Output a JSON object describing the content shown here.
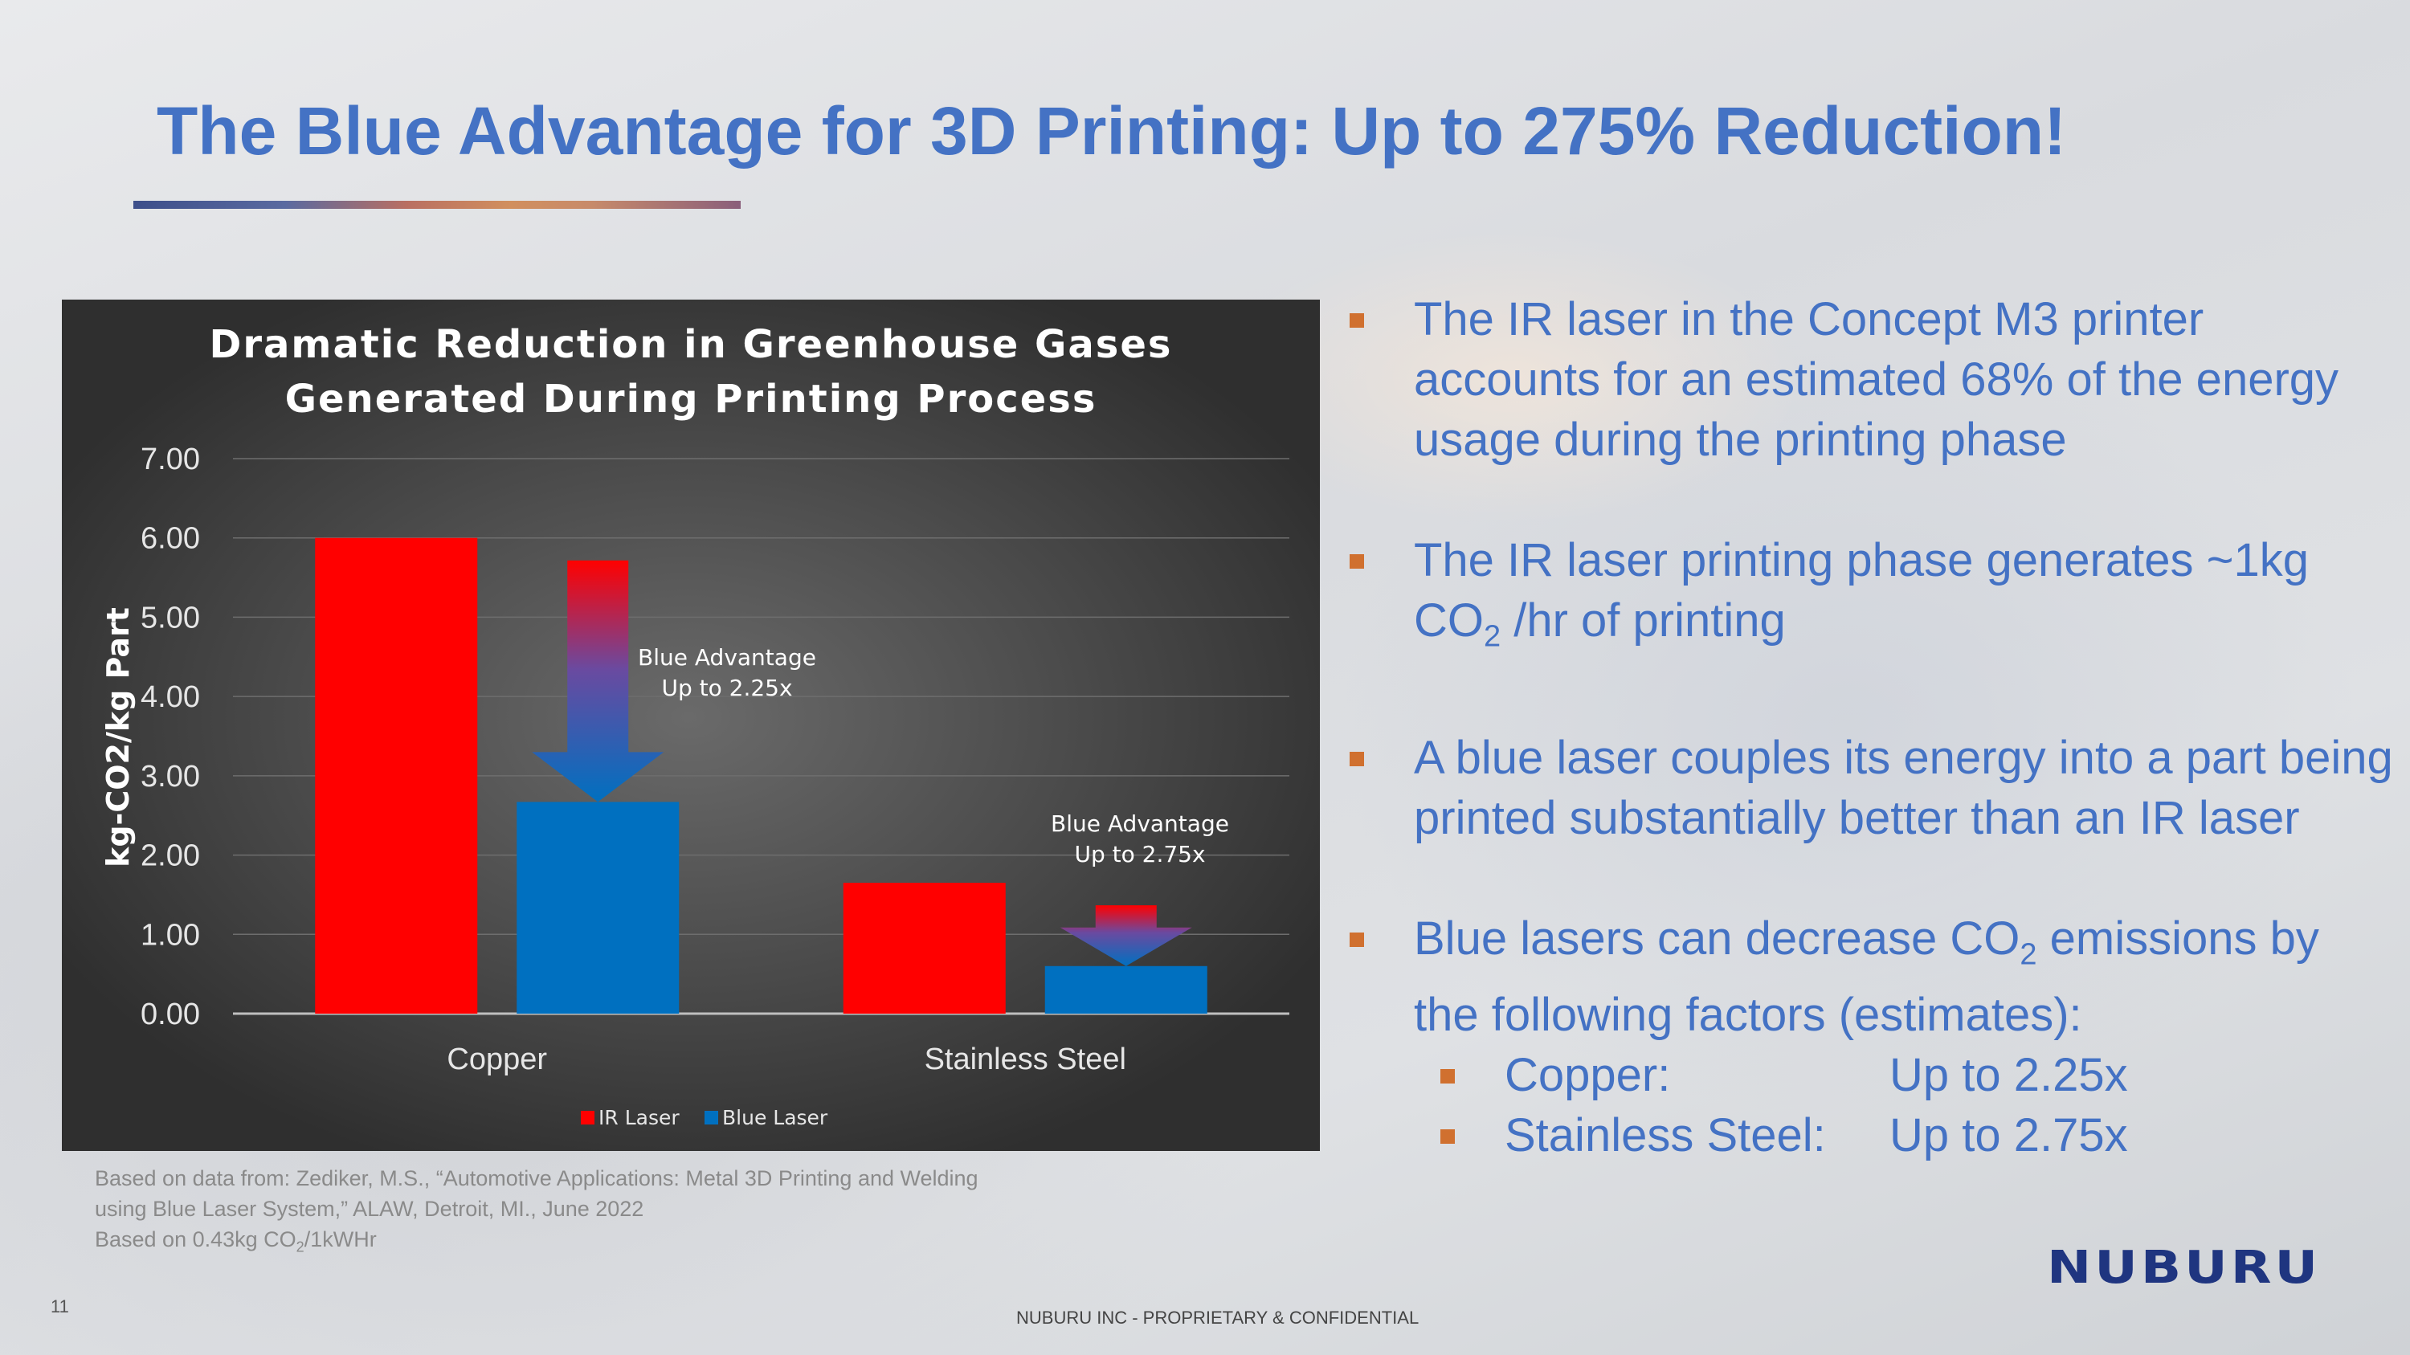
{
  "slide": {
    "title": "The Blue Advantage for 3D Printing: Up to 275% Reduction!",
    "page_number": "11",
    "footer": "NUBURU INC - PROPRIETARY & CONFIDENTIAL",
    "logo": "NUBURU",
    "colors": {
      "title": "#4472c4",
      "bullet": "#d0702f",
      "ir": "#ff0000",
      "blue": "#0070c0"
    }
  },
  "bullets": [
    {
      "text": "The IR laser in the Concept M3 printer accounts for an estimated 68% of the energy usage during the printing phase"
    },
    {
      "pre": "The IR laser printing phase generates ~1kg CO",
      "sub": "2",
      "post": " /hr of printing"
    },
    {
      "text": "A blue laser couples its energy into a part being printed substantially better than an IR laser"
    },
    {
      "pre": "Blue lasers can decrease CO",
      "sub": "2",
      "post": " emissions by the following factors (estimates):"
    }
  ],
  "factors": [
    {
      "label": "Copper:",
      "value": "Up to 2.25x"
    },
    {
      "label": "Stainless Steel:",
      "value": "Up to 2.75x"
    }
  ],
  "source": {
    "line1": "Based on data from: Zediker, M.S., “Automotive Applications: Metal 3D Printing and Welding",
    "line2": "using Blue Laser System,”  ALAW, Detroit, MI., June 2022",
    "line3_pre": "Based on 0.43kg CO",
    "line3_sub": "2",
    "line3_post": "/1kWHr"
  },
  "chart_data": {
    "type": "bar",
    "title": [
      "Dramatic Reduction in Greenhouse Gases",
      "Generated During Printing Process"
    ],
    "ylabel": "kg-CO2/kg Part",
    "xlabel": "",
    "categories": [
      "Copper",
      "Stainless Steel"
    ],
    "series": [
      {
        "name": "IR Laser",
        "values": [
          6.0,
          1.65
        ],
        "color": "#ff0000"
      },
      {
        "name": "Blue Laser",
        "values": [
          2.67,
          0.6
        ],
        "color": "#0070c0"
      }
    ],
    "ylim": [
      0,
      7
    ],
    "yticks": [
      "0.00",
      "1.00",
      "2.00",
      "3.00",
      "4.00",
      "5.00",
      "6.00",
      "7.00"
    ],
    "grid": true,
    "legend": "bottom",
    "annotations": [
      {
        "lines": [
          "Blue Advantage",
          "Up to 2.25x"
        ],
        "category": "Copper"
      },
      {
        "lines": [
          "Blue Advantage",
          "Up to 2.75x"
        ],
        "category": "Stainless Steel"
      }
    ]
  }
}
